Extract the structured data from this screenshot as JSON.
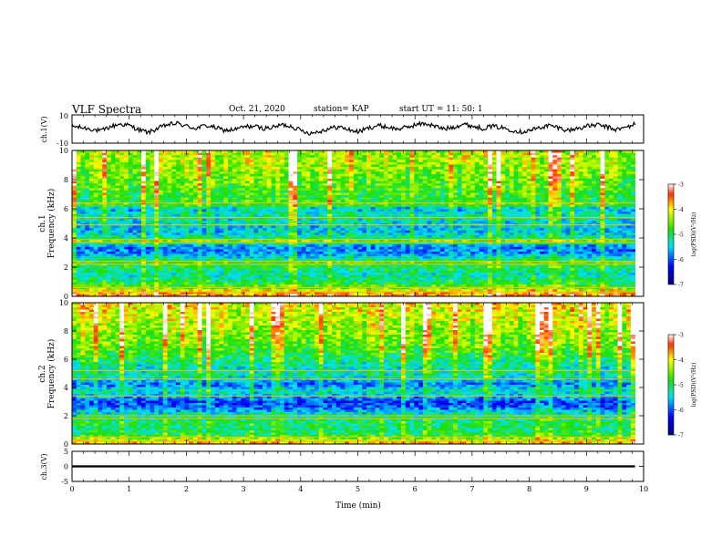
{
  "header": {
    "title": "VLF Spectra",
    "date": "Oct. 21, 2020",
    "station": "station= KAP",
    "start": "start  UT =   11: 50: 1"
  },
  "chart_data": [
    {
      "type": "line",
      "panel": "ch1-waveform",
      "ylabel": "ch.1(V)",
      "ylim": [
        -10,
        10
      ],
      "yticks": [
        10,
        -10
      ],
      "xlim": [
        0,
        10
      ],
      "x_unit": "min",
      "series": [
        {
          "values": [
            2.0,
            1.0,
            0.0,
            -1.5,
            1.5,
            3.5,
            2.5,
            -0.5,
            -2.5,
            0.5,
            3.0,
            4.0,
            2.0,
            0.5,
            2.5,
            1.0,
            -1.0,
            -0.5,
            1.5,
            2.0,
            0.5,
            1.0,
            3.0,
            2.0,
            -1.0,
            -3.0,
            -1.5,
            0.5,
            1.5,
            -0.5,
            -2.0,
            0.5,
            2.5,
            1.5,
            0.0,
            1.0,
            3.0,
            4.0,
            2.0,
            0.0,
            1.5,
            3.5,
            2.0,
            0.5,
            2.0,
            1.0,
            -0.5,
            -2.0,
            -1.0,
            1.0,
            2.5,
            1.0,
            -1.0,
            0.5,
            2.0,
            3.0,
            1.5,
            -0.5,
            1.0,
            3.5
          ]
        }
      ],
      "data_end_min": 9.85
    },
    {
      "type": "heatmap",
      "panel": "ch1-spectrogram",
      "ylabel": "ch.1\nFrequency (kHz)",
      "ylim": [
        0,
        10
      ],
      "yticks": [
        0,
        2,
        4,
        6,
        8,
        10
      ],
      "xlim": [
        0,
        10
      ],
      "data_end_min": 9.85,
      "colorbar": {
        "label": "log(PSD)(V²/Hz)",
        "range": [
          -7,
          -3
        ],
        "ticks": [
          -3,
          -4,
          -5,
          -6,
          -7
        ]
      },
      "mean_profile_kHz": [
        [
          0,
          -3.6
        ],
        [
          0.3,
          -3.8
        ],
        [
          0.6,
          -4.6
        ],
        [
          1.0,
          -5.0
        ],
        [
          1.5,
          -5.3
        ],
        [
          2.0,
          -5.0
        ],
        [
          2.3,
          -4.7
        ],
        [
          2.6,
          -5.3
        ],
        [
          3.0,
          -5.8
        ],
        [
          3.4,
          -5.9
        ],
        [
          3.8,
          -4.6
        ],
        [
          4.0,
          -5.2
        ],
        [
          4.5,
          -5.6
        ],
        [
          5.0,
          -5.4
        ],
        [
          5.5,
          -5.2
        ],
        [
          6.0,
          -5.6
        ],
        [
          6.3,
          -4.6
        ],
        [
          6.6,
          -4.9
        ],
        [
          7.0,
          -4.8
        ],
        [
          8.0,
          -4.6
        ],
        [
          9.0,
          -4.4
        ],
        [
          10.0,
          -4.3
        ]
      ],
      "horizontal_lines_kHz": [
        0.3,
        0.6,
        2.2,
        2.4,
        3.7,
        3.9,
        4.9,
        5.4,
        6.4
      ]
    },
    {
      "type": "heatmap",
      "panel": "ch2-spectrogram",
      "ylabel": "ch.2\nFrequency (kHz)",
      "ylim": [
        0,
        10
      ],
      "yticks": [
        0,
        2,
        4,
        6,
        8,
        10
      ],
      "xlim": [
        0,
        10
      ],
      "data_end_min": 9.85,
      "colorbar": {
        "label": "log(PSD)(V²/Hz)",
        "range": [
          -7,
          -3
        ],
        "ticks": [
          -3,
          -4,
          -5,
          -6,
          -7
        ]
      },
      "mean_profile_kHz": [
        [
          0,
          -3.8
        ],
        [
          0.3,
          -4.2
        ],
        [
          0.6,
          -4.9
        ],
        [
          1.0,
          -5.1
        ],
        [
          1.5,
          -5.0
        ],
        [
          2.0,
          -5.2
        ],
        [
          2.3,
          -5.5
        ],
        [
          2.6,
          -6.0
        ],
        [
          3.0,
          -6.1
        ],
        [
          3.4,
          -5.6
        ],
        [
          3.8,
          -5.3
        ],
        [
          4.2,
          -5.9
        ],
        [
          4.6,
          -5.4
        ],
        [
          5.0,
          -5.2
        ],
        [
          5.5,
          -5.3
        ],
        [
          6.0,
          -5.0
        ],
        [
          6.5,
          -4.8
        ],
        [
          7.0,
          -4.6
        ],
        [
          8.0,
          -4.4
        ],
        [
          9.0,
          -4.2
        ],
        [
          10.0,
          -4.0
        ]
      ],
      "horizontal_lines_kHz": [
        0.2,
        0.5,
        1.8,
        2.0,
        3.4,
        4.6,
        5.2
      ]
    },
    {
      "type": "line",
      "panel": "ch3-waveform",
      "ylabel": "ch.3(V)",
      "ylim": [
        -5,
        5
      ],
      "yticks": [
        5,
        0,
        -5
      ],
      "xlim": [
        0,
        10
      ],
      "xticks": [
        0,
        1,
        2,
        3,
        4,
        5,
        6,
        7,
        8,
        9,
        10
      ],
      "xlabel": "Time (min)",
      "series": [
        {
          "values_mean": 0.0,
          "values_amplitude": 0.35
        }
      ],
      "data_end_min": 9.85
    }
  ]
}
